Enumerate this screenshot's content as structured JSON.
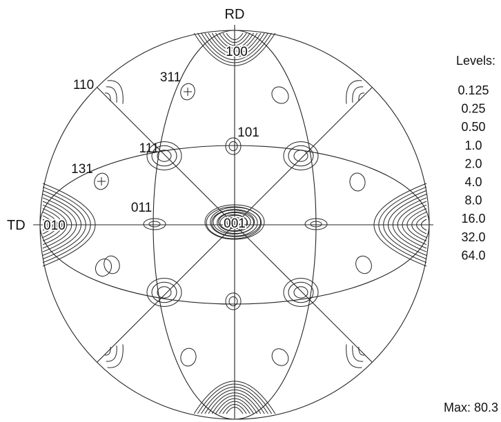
{
  "figure": {
    "axis_labels": {
      "top": "RD",
      "left": "TD"
    },
    "poles": {
      "p100": "100",
      "p311": "311",
      "p110": "110",
      "p101": "101",
      "p111": "111",
      "p131": "131",
      "p011": "011",
      "p010": "010",
      "p001": "001"
    },
    "levels_title": "Levels:",
    "levels": [
      "0.125",
      "0.25",
      "0.50",
      "1.0",
      "2.0",
      "4.0",
      "8.0",
      "16.0",
      "32.0",
      "64.0"
    ],
    "max_label": "Max: 80.3",
    "line_color": "#222222"
  }
}
